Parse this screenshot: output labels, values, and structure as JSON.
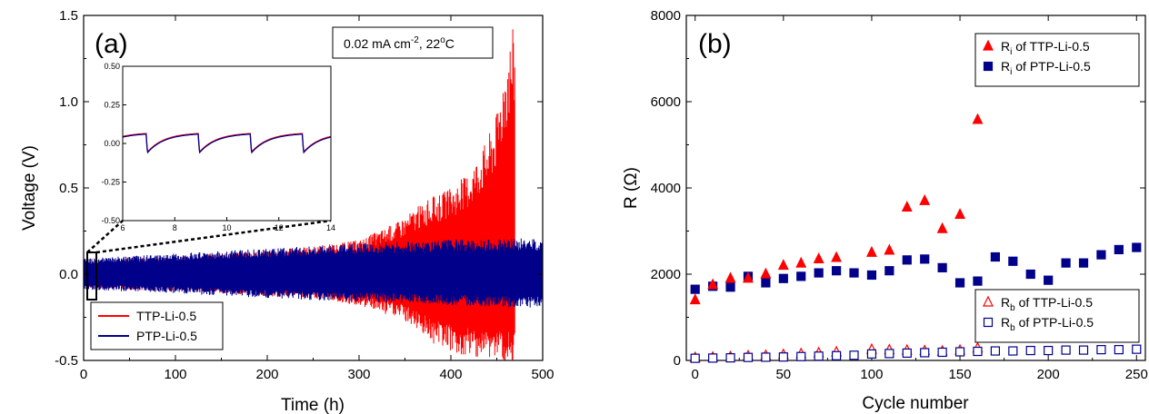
{
  "chart_data": [
    {
      "type": "line",
      "panel_label": "(a)",
      "annotation": "0.02 mA cm-2, 22°C",
      "xlabel": "Time (h)",
      "ylabel": "Voltage (V)",
      "xlim": [
        0,
        500
      ],
      "ylim": [
        -0.5,
        1.5
      ],
      "xticks": [
        "0",
        "100",
        "200",
        "300",
        "400",
        "500"
      ],
      "yticks": [
        "-0.5",
        "0.0",
        "0.5",
        "1.0",
        "1.5"
      ],
      "legend_position": "bottom-left",
      "series": [
        {
          "name": "TTP-Li-0.5",
          "color": "#ff0000",
          "end_time": 470,
          "envelope": {
            "t": [
              0,
              50,
              100,
              150,
              200,
              250,
              300,
              320,
              340,
              360,
              380,
              400,
              420,
              440,
              450,
              460,
              470
            ],
            "upper": [
              0.08,
              0.09,
              0.1,
              0.12,
              0.14,
              0.16,
              0.2,
              0.25,
              0.3,
              0.38,
              0.45,
              0.5,
              0.6,
              0.8,
              0.95,
              1.3,
              1.5
            ],
            "lower": [
              -0.08,
              -0.09,
              -0.1,
              -0.11,
              -0.13,
              -0.14,
              -0.18,
              -0.22,
              -0.25,
              -0.3,
              -0.4,
              -0.45,
              -0.48,
              -0.5,
              -0.5,
              -0.5,
              -0.5
            ]
          }
        },
        {
          "name": "PTP-Li-0.5",
          "color": "#00008b",
          "end_time": 500,
          "envelope": {
            "t": [
              0,
              100,
              200,
              300,
              400,
              500
            ],
            "upper": [
              0.09,
              0.12,
              0.15,
              0.18,
              0.2,
              0.21
            ],
            "lower": [
              -0.09,
              -0.11,
              -0.14,
              -0.16,
              -0.18,
              -0.2
            ]
          }
        }
      ],
      "inset": {
        "xlim": [
          6,
          14
        ],
        "ylim": [
          -0.5,
          0.5
        ],
        "xticks": [
          "6",
          "8",
          "10",
          "12",
          "14"
        ],
        "yticks": [
          "-0.50",
          "-0.25",
          "0.00",
          "0.25",
          "0.50"
        ],
        "cycle_period": 2,
        "cycle_start": 6.9,
        "min_voltage": -0.06,
        "max_voltage": 0.06
      }
    },
    {
      "type": "scatter",
      "panel_label": "(b)",
      "xlabel": "Cycle number",
      "ylabel": "R (Ω)",
      "xlim": [
        -5,
        255
      ],
      "ylim": [
        0,
        8000
      ],
      "xticks": [
        "0",
        "50",
        "100",
        "150",
        "200",
        "250"
      ],
      "yticks": [
        "0",
        "2000",
        "4000",
        "6000",
        "8000"
      ],
      "legend_top": [
        {
          "label": "R",
          "sub": "i",
          "suffix": " of TTP-Li-0.5",
          "color": "#ff0000",
          "marker": "triangle-filled"
        },
        {
          "label": "R",
          "sub": "i",
          "suffix": " of PTP-Li-0.5",
          "color": "#00008b",
          "marker": "square-filled"
        }
      ],
      "legend_bottom": [
        {
          "label": "R",
          "sub": "b",
          "suffix": " of TTP-Li-0.5",
          "color": "#ff0000",
          "marker": "triangle-open"
        },
        {
          "label": "R",
          "sub": "b",
          "suffix": " of PTP-Li-0.5",
          "color": "#00008b",
          "marker": "square-open"
        }
      ],
      "series": [
        {
          "name": "Ri of TTP-Li-0.5",
          "marker": "triangle-filled",
          "color": "#ff0000",
          "x": [
            0,
            10,
            20,
            30,
            40,
            50,
            60,
            70,
            80,
            100,
            110,
            120,
            130,
            140,
            150,
            160
          ],
          "y": [
            1400,
            1750,
            1900,
            1900,
            2000,
            2200,
            2250,
            2350,
            2380,
            2500,
            2550,
            3550,
            3700,
            3050,
            3380,
            5580
          ]
        },
        {
          "name": "Ri of PTP-Li-0.5",
          "marker": "square-filled",
          "color": "#00008b",
          "x": [
            0,
            10,
            20,
            30,
            40,
            50,
            60,
            70,
            80,
            90,
            100,
            110,
            120,
            130,
            140,
            150,
            160,
            170,
            180,
            190,
            200,
            210,
            220,
            230,
            240,
            250
          ],
          "y": [
            1650,
            1720,
            1700,
            1950,
            1800,
            1900,
            1950,
            2030,
            2080,
            2030,
            1980,
            2080,
            2330,
            2350,
            2150,
            1800,
            1840,
            2400,
            2300,
            2000,
            1860,
            2260,
            2260,
            2450,
            2570,
            2620
          ]
        },
        {
          "name": "Rb of TTP-Li-0.5",
          "marker": "triangle-open",
          "color": "#ff0000",
          "x": [
            0,
            10,
            20,
            30,
            40,
            50,
            60,
            70,
            80,
            100,
            110,
            120,
            130,
            140,
            150,
            160
          ],
          "y": [
            60,
            70,
            80,
            100,
            110,
            130,
            150,
            170,
            190,
            250,
            240,
            230,
            220,
            210,
            230,
            280
          ]
        },
        {
          "name": "Rb of PTP-Li-0.5",
          "marker": "square-open",
          "color": "#00008b",
          "x": [
            0,
            10,
            20,
            30,
            40,
            50,
            60,
            70,
            80,
            90,
            100,
            110,
            120,
            130,
            140,
            150,
            160,
            170,
            180,
            190,
            200,
            210,
            220,
            230,
            240,
            250
          ],
          "y": [
            50,
            55,
            60,
            70,
            75,
            80,
            90,
            100,
            110,
            120,
            150,
            160,
            170,
            180,
            190,
            200,
            210,
            220,
            220,
            230,
            230,
            240,
            240,
            250,
            250,
            260
          ]
        }
      ]
    }
  ]
}
